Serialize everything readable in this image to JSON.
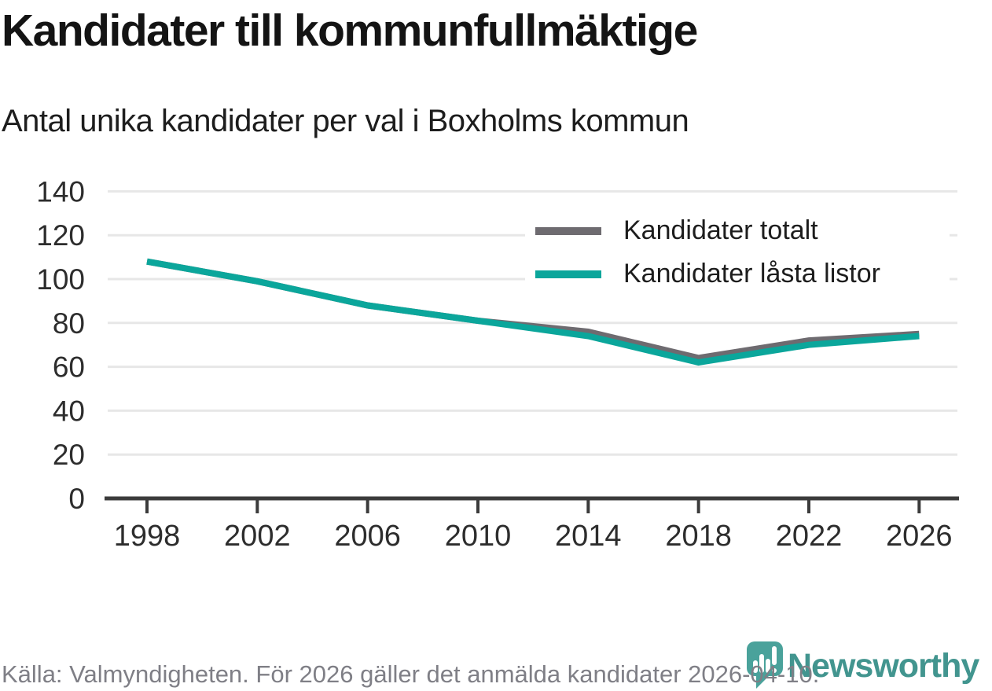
{
  "header": {
    "title": "Kandidater till kommunfullmäktige",
    "subtitle": "Antal unika kandidater per val i Boxholms kommun"
  },
  "chart_data": {
    "type": "line",
    "title": "Kandidater till kommunfullmäktige",
    "subtitle": "Antal unika kandidater per val i Boxholms kommun",
    "x": [
      "1998",
      "2002",
      "2006",
      "2010",
      "2014",
      "2018",
      "2022",
      "2026"
    ],
    "series": [
      {
        "name": "Kandidater totalt",
        "color": "#6e6b70",
        "values": [
          108,
          99,
          88,
          81,
          76,
          64,
          72,
          75
        ]
      },
      {
        "name": "Kandidater låsta listor",
        "color": "#0ba69b",
        "values": [
          108,
          99,
          88,
          81,
          74,
          62,
          70,
          74
        ]
      }
    ],
    "ylim": [
      0,
      140
    ],
    "y_ticks": [
      0,
      20,
      40,
      60,
      80,
      100,
      120,
      140
    ],
    "xlabel": "",
    "ylabel": "",
    "grid": "horizontal",
    "legend_position": "top-right-inside"
  },
  "footer": {
    "source": "Källa: Valmyndigheten. För 2026 gäller det anmälda kandidater 2026-04-10.",
    "brand": "Newsworthy"
  },
  "colors": {
    "accent_teal": "#0ba69b",
    "series_gray": "#6e6b70",
    "logo_teal": "#42958f",
    "logo_mark_teal": "#4aa29b",
    "grid": "#e7e7e7",
    "axis": "#3b3b3b",
    "tick_label": "#2d2d2d",
    "footer_text": "#7f7f86"
  }
}
